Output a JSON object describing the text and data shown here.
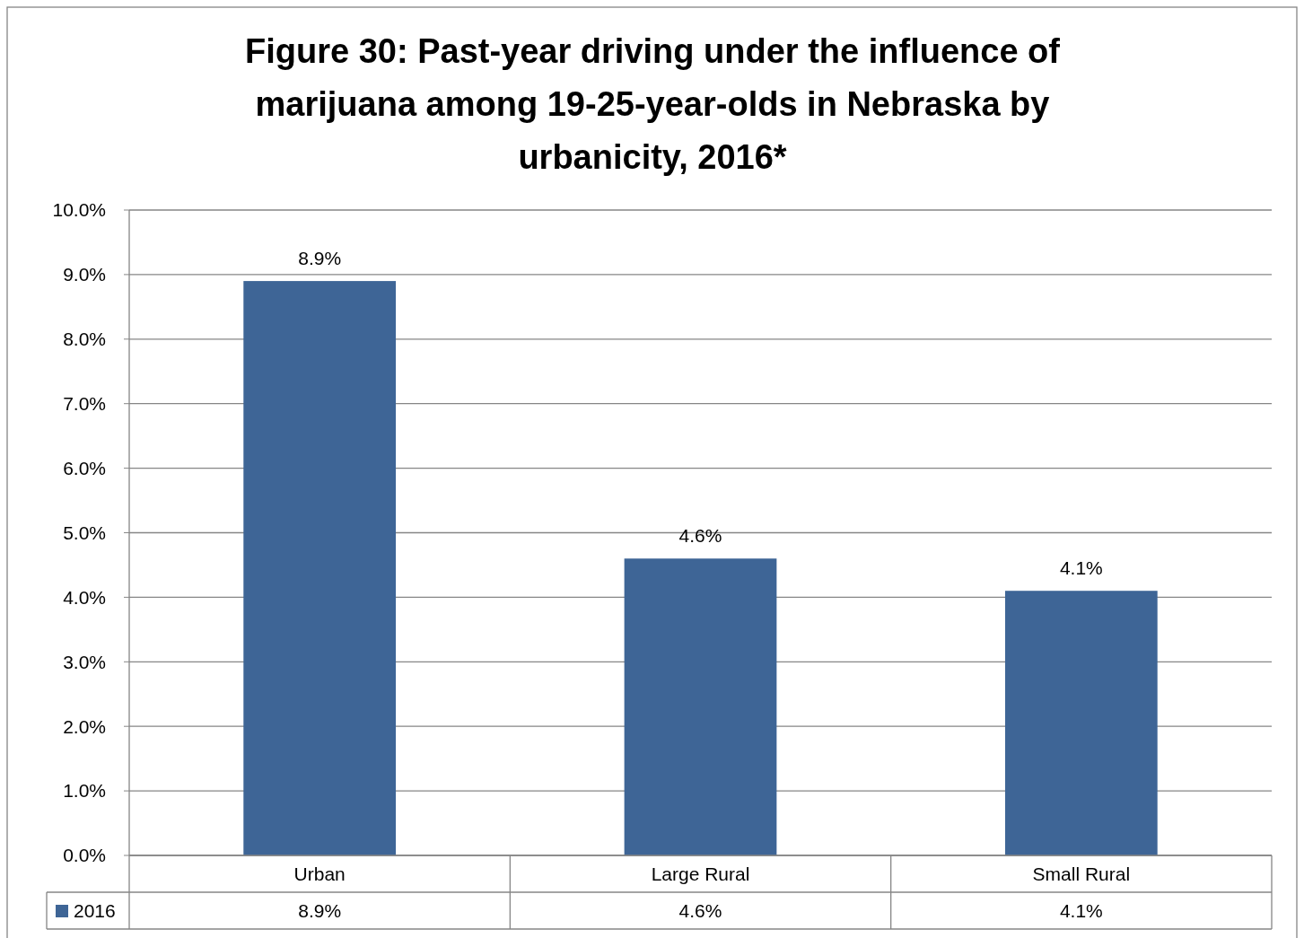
{
  "chart_data": {
    "type": "bar",
    "title": "Figure 30: Past-year driving under the influence of marijuana among 19-25-year-olds in Nebraska by urbanicity, 2016*",
    "categories": [
      "Urban",
      "Large Rural",
      "Small Rural"
    ],
    "series": [
      {
        "name": "2016",
        "color": "#3e6596",
        "values": [
          8.9,
          4.6,
          4.1
        ],
        "value_labels": [
          "8.9%",
          "4.6%",
          "4.1%"
        ]
      }
    ],
    "ylim": [
      0,
      10
    ],
    "yticks": [
      {
        "value": 0,
        "label": "0.0%"
      },
      {
        "value": 1,
        "label": "1.0%"
      },
      {
        "value": 2,
        "label": "2.0%"
      },
      {
        "value": 3,
        "label": "3.0%"
      },
      {
        "value": 4,
        "label": "4.0%"
      },
      {
        "value": 5,
        "label": "5.0%"
      },
      {
        "value": 6,
        "label": "6.0%"
      },
      {
        "value": 7,
        "label": "7.0%"
      },
      {
        "value": 8,
        "label": "8.0%"
      },
      {
        "value": 9,
        "label": "9.0%"
      },
      {
        "value": 10,
        "label": "10.0%"
      }
    ],
    "grid": "y",
    "legend": "bottom left"
  }
}
